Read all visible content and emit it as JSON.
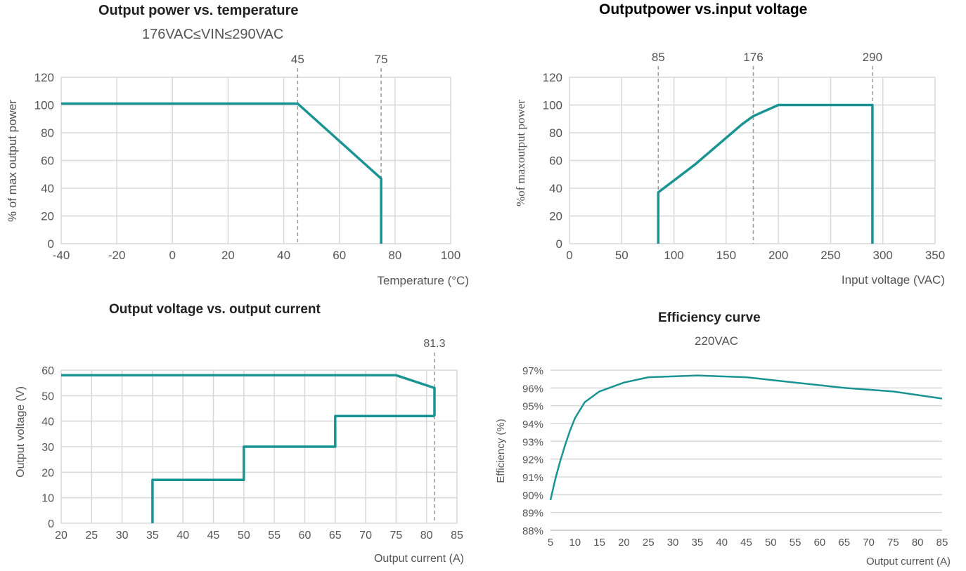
{
  "colors": {
    "line": "#199493",
    "grid": "#d8d8d8",
    "border": "#c8c8c8",
    "dash": "#9a9a9a",
    "text": "#555555"
  },
  "chart_data": [
    {
      "type": "line",
      "title": "Output power vs. temperature",
      "subtitle": "176VAC≤VIN≤290VAC",
      "xlabel": "Temperature (°C)",
      "ylabel": "% of max output power",
      "xlim": [
        -40,
        100
      ],
      "ylim": [
        0,
        120
      ],
      "xticks": [
        "-40",
        "-20",
        "0",
        "20",
        "40",
        "60",
        "80",
        "100"
      ],
      "yticks": [
        "0",
        "20",
        "40",
        "60",
        "80",
        "100",
        "120"
      ],
      "grid": true,
      "markers": [
        {
          "x": 45,
          "label": "45"
        },
        {
          "x": 75,
          "label": "75"
        }
      ],
      "series": [
        {
          "x": [
            -40,
            45,
            75,
            75
          ],
          "y": [
            101,
            101,
            47,
            0
          ]
        }
      ]
    },
    {
      "type": "line",
      "title": "Outputpower vs.input voltage",
      "subtitle": "",
      "xlabel": "Input voltage (VAC)",
      "ylabel": "%of maxoutput power",
      "xlim": [
        0,
        350
      ],
      "ylim": [
        0,
        120
      ],
      "xticks": [
        "0",
        "50",
        "100",
        "150",
        "200",
        "250",
        "300",
        "350"
      ],
      "yticks": [
        "0",
        "20",
        "40",
        "60",
        "80",
        "100",
        "120"
      ],
      "grid": true,
      "markers": [
        {
          "x": 85,
          "label": "85"
        },
        {
          "x": 176,
          "label": "176"
        },
        {
          "x": 290,
          "label": "290"
        }
      ],
      "series": [
        {
          "x": [
            85,
            85,
            120,
            165,
            176,
            200,
            290,
            290
          ],
          "y": [
            0,
            37,
            57,
            86,
            92,
            100,
            100,
            0
          ]
        }
      ]
    },
    {
      "type": "line",
      "title": "Output voltage vs. output current",
      "subtitle": "",
      "xlabel": "Output current (A)",
      "ylabel": "Output voltage (V)",
      "xlim": [
        20,
        85
      ],
      "ylim": [
        0,
        60
      ],
      "xticks": [
        "20",
        "25",
        "30",
        "35",
        "40",
        "45",
        "50",
        "55",
        "60",
        "65",
        "70",
        "75",
        "80",
        "85"
      ],
      "yticks": [
        "0",
        "10",
        "20",
        "30",
        "40",
        "50",
        "60"
      ],
      "grid": true,
      "markers": [
        {
          "x": 81.3,
          "label": "81.3"
        }
      ],
      "series": [
        {
          "x": [
            20,
            75,
            81.3,
            81.3
          ],
          "y": [
            58,
            58,
            53,
            42
          ]
        },
        {
          "x": [
            35,
            35,
            50,
            50,
            65,
            65,
            81.3
          ],
          "y": [
            0,
            17,
            17,
            30,
            30,
            42,
            42
          ]
        }
      ]
    },
    {
      "type": "line",
      "title": "Efficiency curve",
      "subtitle": "220VAC",
      "xlabel": "Output current (A)",
      "ylabel": "Efficiency (%)",
      "xlim": [
        5,
        85
      ],
      "ylim": [
        88,
        97
      ],
      "xticks": [
        "5",
        "10",
        "15",
        "20",
        "25",
        "30",
        "35",
        "40",
        "45",
        "50",
        "55",
        "60",
        "65",
        "70",
        "75",
        "80",
        "85"
      ],
      "yticks": [
        "88%",
        "89%",
        "90%",
        "91%",
        "92%",
        "93%",
        "94%",
        "95%",
        "96%",
        "97%"
      ],
      "grid": true,
      "markers": [],
      "series": [
        {
          "x": [
            5,
            6,
            7,
            8,
            9,
            10,
            12,
            15,
            20,
            25,
            35,
            45,
            55,
            65,
            75,
            85
          ],
          "y": [
            89.7,
            90.9,
            91.9,
            92.8,
            93.6,
            94.3,
            95.2,
            95.8,
            96.3,
            96.6,
            96.7,
            96.6,
            96.3,
            96.0,
            95.8,
            95.4
          ]
        }
      ]
    }
  ]
}
